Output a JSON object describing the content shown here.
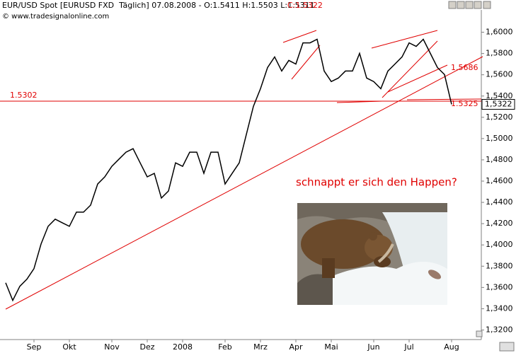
{
  "chart_data": {
    "type": "line",
    "header": {
      "info": "EUR/USD Spot [EURUSD FXD  Täglich] 07.08.2008 - O:1.5411 H:1.5503 L:1.5311",
      "close": "C:1.5322"
    },
    "copyright": "© www.tradesignalonline.com",
    "categories": [
      null,
      null,
      null,
      null,
      "Sep",
      null,
      null,
      null,
      null,
      "Okt",
      null,
      null,
      null,
      null,
      null,
      "Nov",
      null,
      null,
      null,
      null,
      "Dez",
      null,
      null,
      null,
      null,
      "2008",
      null,
      null,
      null,
      null,
      null,
      "Feb",
      null,
      null,
      null,
      null,
      "Mrz",
      null,
      null,
      null,
      null,
      "Apr",
      null,
      null,
      null,
      null,
      "Mai",
      null,
      null,
      null,
      null,
      null,
      "Jun",
      null,
      null,
      null,
      null,
      "Jul",
      null,
      null,
      null,
      null,
      null,
      "Aug"
    ],
    "values": [
      1.3644,
      1.3478,
      1.3611,
      1.3678,
      1.3777,
      1.4009,
      1.4175,
      1.4242,
      1.4208,
      1.4175,
      1.4308,
      1.4308,
      1.4374,
      1.4573,
      1.464,
      1.4739,
      1.4806,
      1.4872,
      1.4905,
      1.4772,
      1.464,
      1.4673,
      1.4441,
      1.4507,
      1.4772,
      1.4739,
      1.4872,
      1.4872,
      1.4673,
      1.4872,
      1.4872,
      1.4573,
      1.4673,
      1.4772,
      1.5038,
      1.5303,
      1.5469,
      1.5668,
      1.5768,
      1.5635,
      1.5735,
      1.5701,
      1.59,
      1.59,
      1.5934,
      1.5635,
      1.5536,
      1.5569,
      1.5635,
      1.5635,
      1.5801,
      1.5569,
      1.5536,
      1.5469,
      1.5635,
      1.5701,
      1.5768,
      1.59,
      1.5867,
      1.5934,
      1.5801,
      1.5668,
      1.5602,
      1.5322
    ],
    "color": "#000000",
    "ylim": [
      1.311,
      1.621
    ],
    "yticks": [
      {
        "value": 1.32,
        "label": "1,3200"
      },
      {
        "value": 1.34,
        "label": "1,3400"
      },
      {
        "value": 1.36,
        "label": "1,3600"
      },
      {
        "value": 1.38,
        "label": "1,3800"
      },
      {
        "value": 1.4,
        "label": "1,4000"
      },
      {
        "value": 1.42,
        "label": "1,4200"
      },
      {
        "value": 1.44,
        "label": "1,4400"
      },
      {
        "value": 1.46,
        "label": "1,4600"
      },
      {
        "value": 1.48,
        "label": "1,4800"
      },
      {
        "value": 1.5,
        "label": "1,5000"
      },
      {
        "value": 1.52,
        "label": "1,5200"
      },
      {
        "value": 1.54,
        "label": "1,5400"
      },
      {
        "value": 1.56,
        "label": "1,5600"
      },
      {
        "value": 1.58,
        "label": "1,5800"
      },
      {
        "value": 1.6,
        "label": "1,6000"
      }
    ],
    "last_value_label": "1,5322",
    "annotations": {
      "support": "1.5302",
      "resistance": "1.5686",
      "low": "1.5325",
      "caption": "schnappt er sich den Happen?"
    }
  }
}
